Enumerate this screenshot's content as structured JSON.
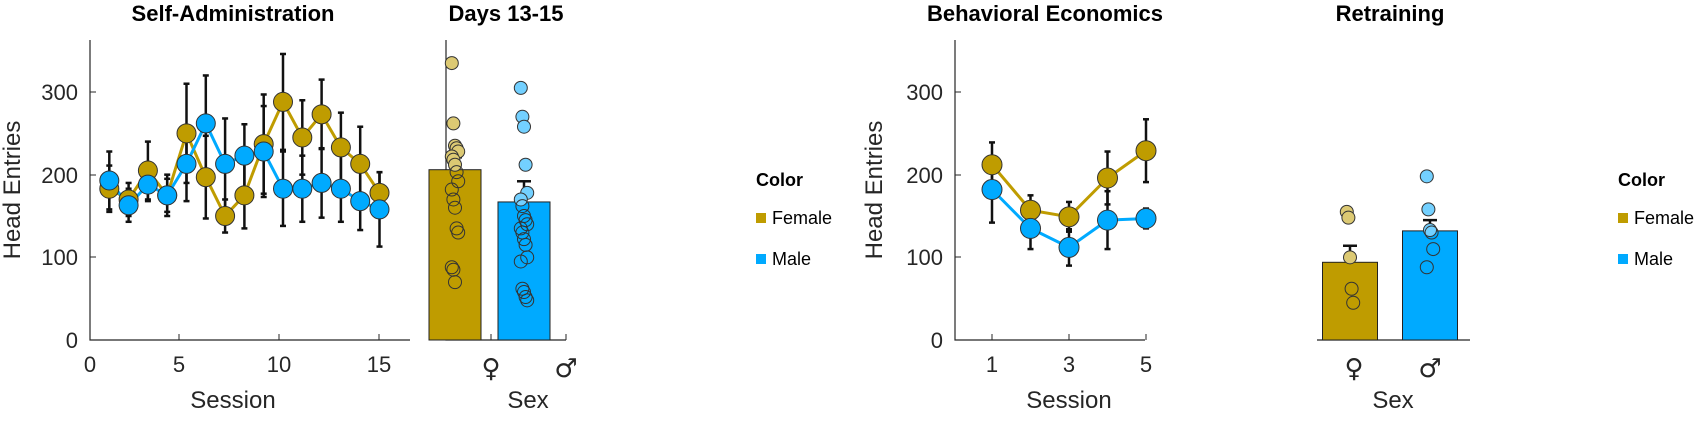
{
  "colors": {
    "female": "#BF9C00",
    "male": "#00AAFF"
  },
  "chart_data": [
    {
      "id": "sa",
      "type": "line",
      "title": "Self-Administration",
      "xlabel": "Session",
      "ylabel": "Head Entries",
      "xlim": [
        0,
        16
      ],
      "ylim": [
        0,
        360
      ],
      "xticks": [
        0,
        5,
        10,
        15
      ],
      "yticks": [
        0,
        100,
        200,
        300
      ],
      "x": [
        1,
        2,
        3,
        4,
        5,
        6,
        7,
        8,
        9,
        10,
        11,
        12,
        13,
        14,
        15
      ],
      "series": [
        {
          "name": "Female",
          "color": "#BF9C00",
          "values": [
            183,
            170,
            205,
            175,
            250,
            197,
            150,
            175,
            237,
            288,
            245,
            273,
            233,
            213,
            178
          ],
          "errors": [
            28,
            20,
            35,
            25,
            60,
            50,
            20,
            40,
            60,
            58,
            45,
            42,
            42,
            45,
            25
          ]
        },
        {
          "name": "Male",
          "color": "#00AAFF",
          "values": [
            193,
            163,
            188,
            175,
            213,
            262,
            213,
            223,
            228,
            183,
            183,
            190,
            183,
            168,
            158
          ],
          "errors": [
            35,
            20,
            20,
            20,
            45,
            58,
            55,
            38,
            55,
            45,
            40,
            42,
            40,
            35,
            45
          ]
        }
      ]
    },
    {
      "id": "days",
      "type": "bar",
      "title": "Days 13-15",
      "xlabel": "Sex",
      "ylim": [
        0,
        360
      ],
      "categories": [
        "♀",
        "♂"
      ],
      "values": [
        206,
        167
      ],
      "errors": [
        15,
        25
      ],
      "colors": [
        "#BF9C00",
        "#00AAFF"
      ],
      "points": [
        [
          335,
          262,
          235,
          232,
          228,
          222,
          218,
          212,
          203,
          192,
          182,
          170,
          160,
          135,
          130,
          88,
          85,
          70
        ],
        [
          305,
          270,
          258,
          212,
          178,
          170,
          162,
          150,
          145,
          140,
          135,
          130,
          122,
          115,
          100,
          95,
          62,
          58,
          52,
          48
        ]
      ]
    },
    {
      "id": "be",
      "type": "line",
      "title": "Behavioral Economics",
      "xlabel": "Session",
      "ylabel": "Head Entries",
      "xlim": [
        0.5,
        5.5
      ],
      "ylim": [
        0,
        360
      ],
      "xticks": [
        1,
        3,
        5
      ],
      "yticks": [
        0,
        100,
        200,
        300
      ],
      "x": [
        1,
        2,
        3,
        4,
        5
      ],
      "series": [
        {
          "name": "Female",
          "color": "#BF9C00",
          "values": [
            212,
            157,
            149,
            196,
            229
          ],
          "errors": [
            27,
            18,
            18,
            32,
            38
          ]
        },
        {
          "name": "Male",
          "color": "#00AAFF",
          "values": [
            182,
            135,
            112,
            145,
            147
          ],
          "errors": [
            40,
            25,
            22,
            35,
            12
          ]
        }
      ]
    },
    {
      "id": "rt",
      "type": "bar",
      "title": "Retraining",
      "xlabel": "Sex",
      "ylim": [
        0,
        360
      ],
      "categories": [
        "♀",
        "♂"
      ],
      "values": [
        94,
        132
      ],
      "errors": [
        20,
        13
      ],
      "colors": [
        "#BF9C00",
        "#00AAFF"
      ],
      "points": [
        [
          155,
          148,
          100,
          62,
          45
        ],
        [
          198,
          158,
          133,
          130,
          110,
          88
        ]
      ]
    }
  ],
  "legends": [
    {
      "title": "Color",
      "items": [
        "Female",
        "Male"
      ]
    },
    {
      "title": "Color",
      "items": [
        "Female",
        "Male"
      ]
    }
  ]
}
